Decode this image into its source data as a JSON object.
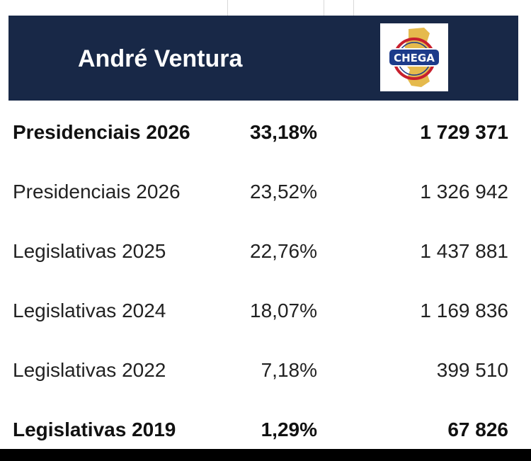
{
  "header": {
    "title": "André Ventura",
    "logo_text": "CHEGA",
    "colors": {
      "band": "#182847",
      "logo_red": "#c8202e",
      "logo_blue": "#1d3b8a",
      "logo_gold": "#e2b23a"
    }
  },
  "rows": [
    {
      "election": "Presidenciais 2026",
      "percent": "33,18%",
      "votes": "1 729 371",
      "bold": true
    },
    {
      "election": "Presidenciais 2026",
      "percent": "23,52%",
      "votes": "1 326 942",
      "bold": false
    },
    {
      "election": "Legislativas 2025",
      "percent": "22,76%",
      "votes": "1 437 881",
      "bold": false
    },
    {
      "election": "Legislativas 2024",
      "percent": "18,07%",
      "votes": "1 169 836",
      "bold": false
    },
    {
      "election": "Legislativas 2022",
      "percent": "7,18%",
      "votes": "399 510",
      "bold": false
    },
    {
      "election": "Legislativas 2019",
      "percent": "1,29%",
      "votes": "67 826",
      "bold": true
    }
  ]
}
